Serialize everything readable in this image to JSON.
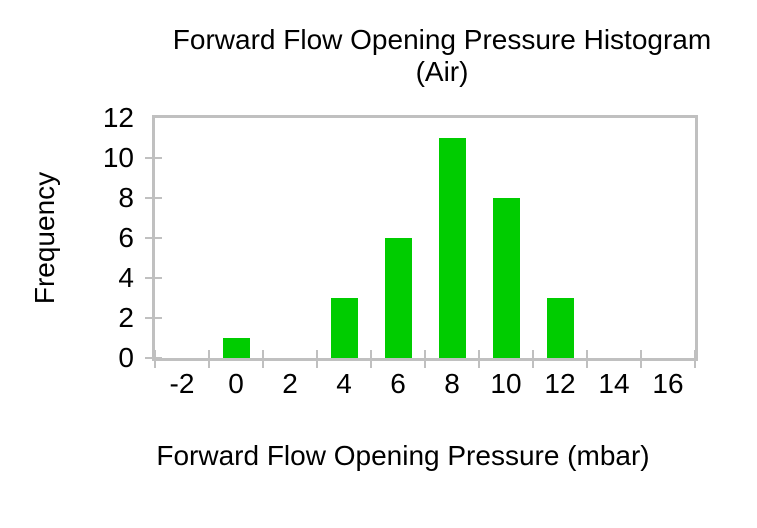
{
  "chart_data": {
    "type": "bar",
    "title": "Forward Flow Opening Pressure Histogram (Air)",
    "title_lines": [
      "Forward Flow Opening Pressure Histogram",
      "(Air)"
    ],
    "xlabel": "Forward Flow Opening Pressure (mbar)",
    "ylabel": "Frequency",
    "categories": [
      "-2",
      "0",
      "2",
      "4",
      "6",
      "8",
      "10",
      "12",
      "14",
      "16"
    ],
    "values": [
      0,
      1,
      0,
      3,
      6,
      11,
      8,
      3,
      0,
      0
    ],
    "ylim": [
      0,
      12
    ],
    "yticks": [
      0,
      2,
      4,
      6,
      8,
      10,
      12
    ],
    "grid": false,
    "legend": false,
    "bar_color": "#00CC00",
    "axis_frame_color": "#C0C0C0",
    "text_color": "#000000"
  }
}
